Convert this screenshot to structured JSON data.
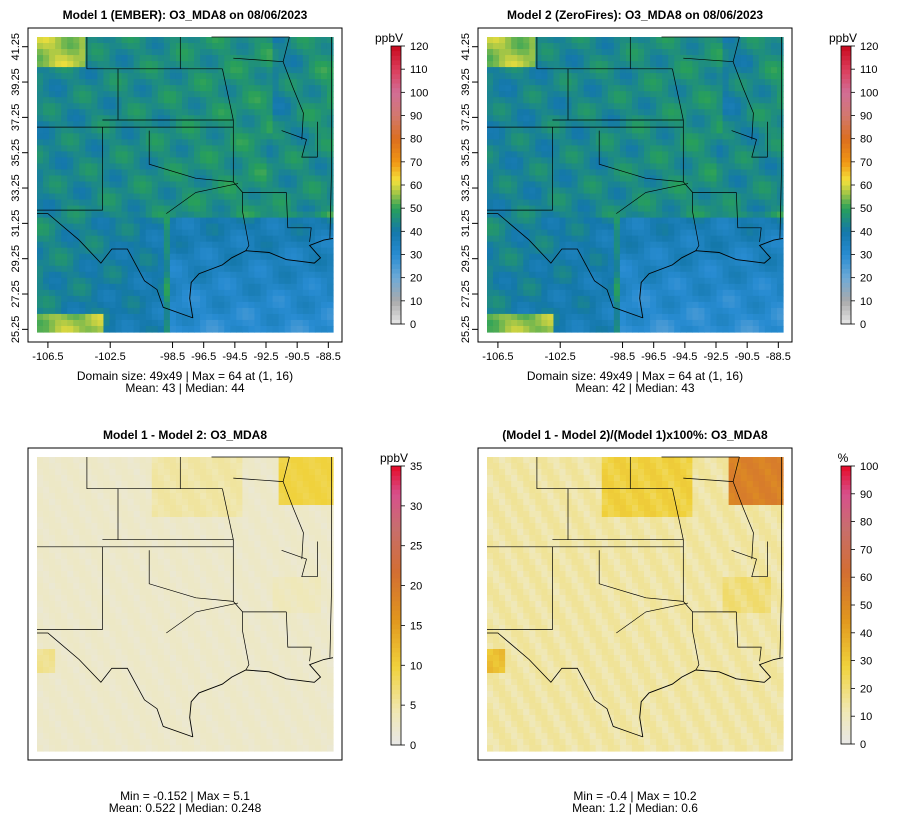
{
  "chart_data": [
    {
      "type": "heatmap",
      "title": "Model 1 (EMBER): O3_MDA8 on 08/06/2023",
      "units": "ppbV",
      "x_ticks": [
        "-106.5",
        "-102.5",
        "-98.5",
        "-96.5",
        "-94.5",
        "-92.5",
        "-90.5",
        "-88.5"
      ],
      "x_tick_values": [
        -106.5,
        -102.5,
        -98.5,
        -96.5,
        -94.5,
        -92.5,
        -90.5,
        -88.5
      ],
      "y_ticks": [
        "25.25",
        "27.25",
        "29.25",
        "31.25",
        "33.25",
        "35.25",
        "37.25",
        "39.25",
        "41.25"
      ],
      "y_tick_values": [
        25.25,
        27.25,
        29.25,
        31.25,
        33.25,
        35.25,
        37.25,
        39.25,
        41.25
      ],
      "colorbar_ticks": [
        "0",
        "10",
        "20",
        "30",
        "40",
        "50",
        "60",
        "70",
        "80",
        "90",
        "100",
        "110",
        "120"
      ],
      "colorbar_range": [
        0,
        120
      ],
      "colormap": "ozone",
      "mean_value": 43,
      "stats_line1": "Domain size: 49x49 | Max = 64 at (1, 16)",
      "stats_line2": "Mean: 43 |  Median: 44"
    },
    {
      "type": "heatmap",
      "title": "Model 2 (ZeroFires): O3_MDA8 on 08/06/2023",
      "units": "ppbV",
      "x_ticks": [
        "-106.5",
        "-102.5",
        "-98.5",
        "-96.5",
        "-94.5",
        "-92.5",
        "-90.5",
        "-88.5"
      ],
      "x_tick_values": [
        -106.5,
        -102.5,
        -98.5,
        -96.5,
        -94.5,
        -92.5,
        -90.5,
        -88.5
      ],
      "y_ticks": [
        "25.25",
        "27.25",
        "29.25",
        "31.25",
        "33.25",
        "35.25",
        "37.25",
        "39.25",
        "41.25"
      ],
      "y_tick_values": [
        25.25,
        27.25,
        29.25,
        31.25,
        33.25,
        35.25,
        37.25,
        39.25,
        41.25
      ],
      "colorbar_ticks": [
        "0",
        "10",
        "20",
        "30",
        "40",
        "50",
        "60",
        "70",
        "80",
        "90",
        "100",
        "110",
        "120"
      ],
      "colorbar_range": [
        0,
        120
      ],
      "colormap": "ozone",
      "mean_value": 42,
      "stats_line1": "Domain size: 49x49 | Max = 64 at (1, 16)",
      "stats_line2": "Mean: 42 |  Median: 43"
    },
    {
      "type": "heatmap",
      "title": "Model 1 - Model 2: O3_MDA8",
      "units": "ppbV",
      "colorbar_ticks": [
        "0",
        "5",
        "10",
        "15",
        "20",
        "25",
        "30",
        "35"
      ],
      "colorbar_range": [
        0,
        35
      ],
      "colormap": "diff",
      "min_value": -0.152,
      "max_value": 5.1,
      "stats_line1": "Min = -0.152 | Max = 5.1",
      "stats_line2": "Mean: 0.522 |  Median: 0.248"
    },
    {
      "type": "heatmap",
      "title": "(Model 1 - Model 2)/(Model 1)x100%: O3_MDA8",
      "units": "%",
      "colorbar_ticks": [
        "0",
        "10",
        "20",
        "30",
        "40",
        "50",
        "60",
        "70",
        "80",
        "90",
        "100"
      ],
      "colorbar_range": [
        0,
        100
      ],
      "colormap": "diff",
      "min_value": -0.4,
      "max_value": 10.2,
      "stats_line1": "Min = -0.4 | Max = 10.2",
      "stats_line2": "Mean: 1.2 |  Median: 0.6"
    }
  ]
}
